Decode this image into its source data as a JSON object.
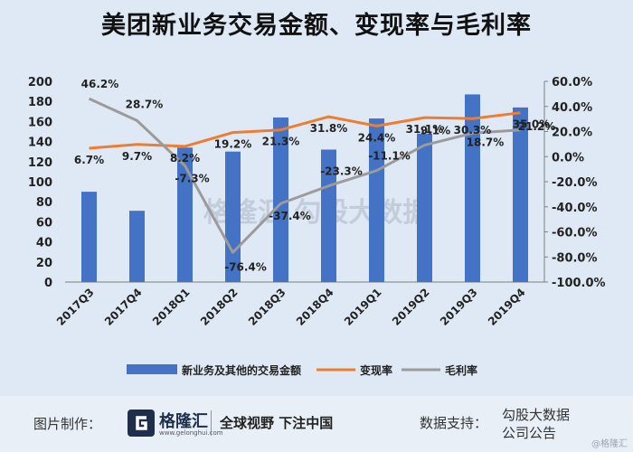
{
  "title": "美团新业务交易金额、变现率与毛利率",
  "watermark": "格隆汇  勾股大数据",
  "footer": {
    "credit_label": "图片制作：",
    "brand_name": "格隆汇",
    "brand_domain": "www.gelonghui.com",
    "slogan": "全球视野 下注中国",
    "source_label": "数据支持：",
    "source_line1": "勾股大数据",
    "source_line2": "公司公告",
    "corner_mark": "@格隆汇"
  },
  "chart_data": {
    "type": "bar",
    "title": "美团新业务交易金额、变现率与毛利率",
    "categories": [
      "2017Q3",
      "2017Q4",
      "2018Q1",
      "2018Q2",
      "2018Q3",
      "2018Q4",
      "2019Q1",
      "2019Q2",
      "2019Q3",
      "2019Q4"
    ],
    "left_axis": {
      "ylim": [
        0,
        200
      ],
      "ticks": [
        "0",
        "20",
        "40",
        "60",
        "80",
        "100",
        "120",
        "140",
        "160",
        "180",
        "200"
      ]
    },
    "right_axis": {
      "ylim": [
        -100,
        60
      ],
      "ticks": [
        "-100.0%",
        "-80.0%",
        "-60.0%",
        "-40.0%",
        "-20.0%",
        "0.0%",
        "20.0%",
        "40.0%",
        "60.0%"
      ]
    },
    "series": [
      {
        "name": "新业务及其他的交易金额",
        "kind": "bar",
        "axis": "left",
        "color": "#4472c4",
        "values": [
          90,
          71,
          134,
          130,
          164,
          132,
          163,
          148,
          187,
          174
        ]
      },
      {
        "name": "变现率",
        "kind": "line",
        "axis": "right",
        "color": "#ed7d31",
        "values": [
          6.7,
          9.7,
          8.2,
          19.2,
          21.3,
          31.8,
          24.4,
          31.1,
          30.3,
          35.0
        ],
        "labels": [
          "6.7%",
          "9.7%",
          "8.2%",
          "19.2%",
          "21.3%",
          "31.8%",
          "24.4%",
          "31.1%",
          "30.3%",
          "35.0%"
        ]
      },
      {
        "name": "毛利率",
        "kind": "line",
        "axis": "right",
        "color": "#9b9b9b",
        "values": [
          46.2,
          28.7,
          -7.3,
          -76.4,
          -37.4,
          -23.3,
          -11.1,
          9.1,
          18.7,
          21.2
        ],
        "labels": [
          "46.2%",
          "28.7%",
          "-7.3%",
          "-76.4%",
          "-37.4%",
          "-23.3%",
          "-11.1%",
          "9.1%",
          "18.7%",
          "21.2%"
        ]
      }
    ],
    "legend_position": "bottom",
    "grid": false
  }
}
